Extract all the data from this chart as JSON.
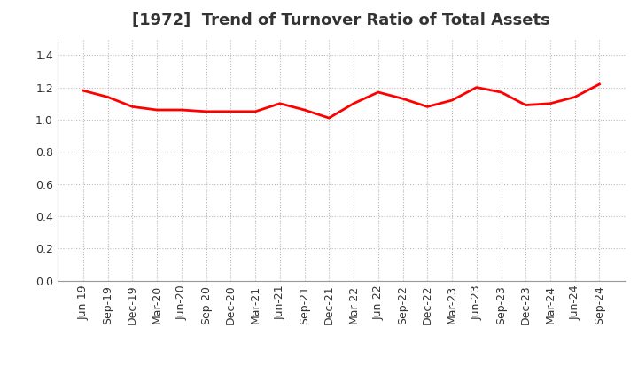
{
  "title": "[1972]  Trend of Turnover Ratio of Total Assets",
  "labels": [
    "Jun-19",
    "Sep-19",
    "Dec-19",
    "Mar-20",
    "Jun-20",
    "Sep-20",
    "Dec-20",
    "Mar-21",
    "Jun-21",
    "Sep-21",
    "Dec-21",
    "Mar-22",
    "Jun-22",
    "Sep-22",
    "Dec-22",
    "Mar-23",
    "Jun-23",
    "Sep-23",
    "Dec-23",
    "Mar-24",
    "Jun-24",
    "Sep-24"
  ],
  "values": [
    1.18,
    1.14,
    1.08,
    1.06,
    1.06,
    1.05,
    1.05,
    1.05,
    1.1,
    1.06,
    1.01,
    1.1,
    1.17,
    1.13,
    1.08,
    1.12,
    1.2,
    1.17,
    1.09,
    1.1,
    1.14,
    1.22
  ],
  "line_color": "#FF0000",
  "line_width": 2.0,
  "ylim": [
    0.0,
    1.5
  ],
  "yticks": [
    0.0,
    0.2,
    0.4,
    0.6,
    0.8,
    1.0,
    1.2,
    1.4
  ],
  "background_color": "#ffffff",
  "plot_bg_color": "#ffffff",
  "grid_color": "#bbbbbb",
  "title_fontsize": 13,
  "tick_fontsize": 9,
  "title_color": "#333333",
  "tick_color": "#333333"
}
